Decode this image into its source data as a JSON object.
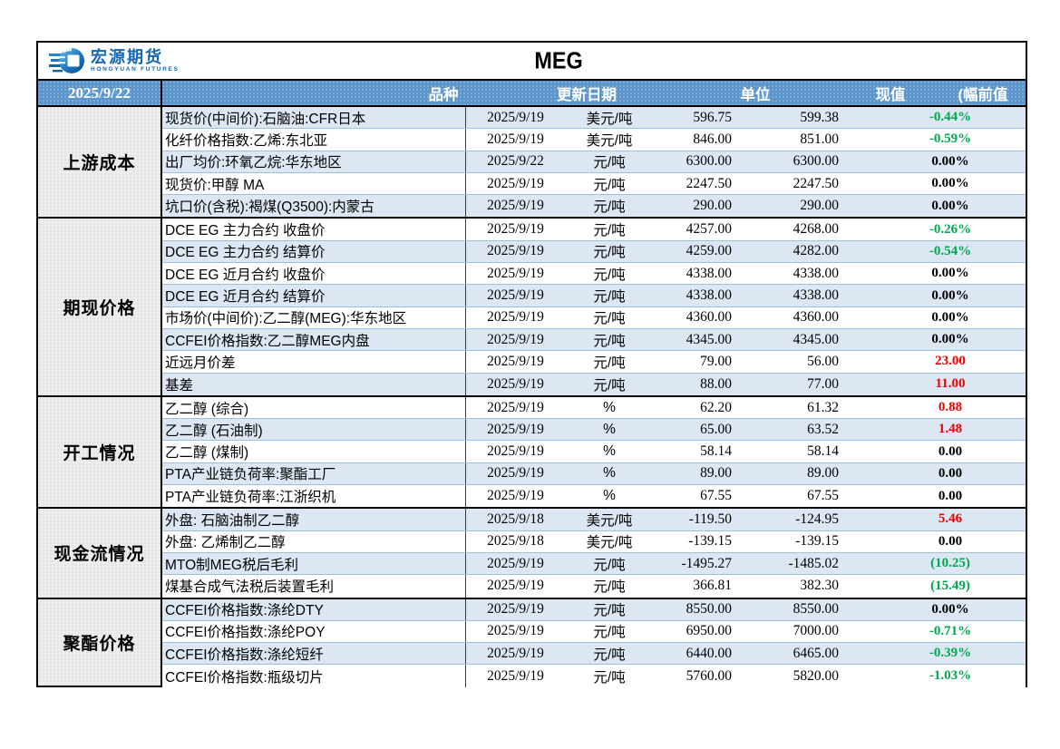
{
  "title": "MEG",
  "brand": {
    "name_cn": "宏源期货",
    "name_en": "HONGYUAN FUTURES"
  },
  "header": {
    "corner_date": "2025/9/22",
    "col_item": "品种",
    "col_date": "更新日期",
    "col_unit": "单位",
    "col_current": "现值",
    "col_change_prev": "(幅前值"
  },
  "colors": {
    "header_bg": "#5B95CB",
    "stripe": "#DCE7F3",
    "group_bg": "#EDEDED",
    "row_line": "#9DBFE0",
    "green": "#00A84F",
    "red": "#EE0000",
    "border": "#000000",
    "brand_blue": "#1767B3"
  },
  "sections": [
    {
      "label": "上游成本",
      "rows": [
        {
          "name": "现货价(中间价):石脑油:CFR日本",
          "date": "2025/9/19",
          "unit": "美元/吨",
          "current": "596.75",
          "previous": "599.38",
          "change": "-0.44%",
          "change_color": "green"
        },
        {
          "name": "化纤价格指数:乙烯:东北亚",
          "date": "2025/9/19",
          "unit": "美元/吨",
          "current": "846.00",
          "previous": "851.00",
          "change": "-0.59%",
          "change_color": "green"
        },
        {
          "name": "出厂均价:环氧乙烷:华东地区",
          "date": "2025/9/22",
          "unit": "元/吨",
          "current": "6300.00",
          "previous": "6300.00",
          "change": "0.00%",
          "change_color": "black"
        },
        {
          "name": "现货价:甲醇 MA",
          "date": "2025/9/19",
          "unit": "元/吨",
          "current": "2247.50",
          "previous": "2247.50",
          "change": "0.00%",
          "change_color": "black"
        },
        {
          "name": "坑口价(含税):褐煤(Q3500):内蒙古",
          "date": "2025/9/19",
          "unit": "元/吨",
          "current": "290.00",
          "previous": "290.00",
          "change": "0.00%",
          "change_color": "black"
        }
      ]
    },
    {
      "label": "期现价格",
      "rows": [
        {
          "name": "DCE EG 主力合约 收盘价",
          "date": "2025/9/19",
          "unit": "元/吨",
          "current": "4257.00",
          "previous": "4268.00",
          "change": "-0.26%",
          "change_color": "green"
        },
        {
          "name": "DCE EG 主力合约 结算价",
          "date": "2025/9/19",
          "unit": "元/吨",
          "current": "4259.00",
          "previous": "4282.00",
          "change": "-0.54%",
          "change_color": "green"
        },
        {
          "name": "DCE EG 近月合约 收盘价",
          "date": "2025/9/19",
          "unit": "元/吨",
          "current": "4338.00",
          "previous": "4338.00",
          "change": "0.00%",
          "change_color": "black"
        },
        {
          "name": "DCE EG 近月合约 结算价",
          "date": "2025/9/19",
          "unit": "元/吨",
          "current": "4338.00",
          "previous": "4338.00",
          "change": "0.00%",
          "change_color": "black"
        },
        {
          "name": "市场价(中间价):乙二醇(MEG):华东地区",
          "date": "2025/9/19",
          "unit": "元/吨",
          "current": "4360.00",
          "previous": "4360.00",
          "change": "0.00%",
          "change_color": "black"
        },
        {
          "name": "CCFEI价格指数:乙二醇MEG内盘",
          "date": "2025/9/19",
          "unit": "元/吨",
          "current": "4345.00",
          "previous": "4345.00",
          "change": "0.00%",
          "change_color": "black"
        },
        {
          "name": "近远月价差",
          "date": "2025/9/19",
          "unit": "元/吨",
          "current": "79.00",
          "previous": "56.00",
          "change": "23.00",
          "change_color": "red"
        },
        {
          "name": "基差",
          "date": "2025/9/19",
          "unit": "元/吨",
          "current": "88.00",
          "previous": "77.00",
          "change": "11.00",
          "change_color": "red"
        }
      ]
    },
    {
      "label": "开工情况",
      "rows": [
        {
          "name": "乙二醇 (综合)",
          "date": "2025/9/19",
          "unit": "%",
          "current": "62.20",
          "previous": "61.32",
          "change": "0.88",
          "change_color": "red"
        },
        {
          "name": "乙二醇 (石油制)",
          "date": "2025/9/19",
          "unit": "%",
          "current": "65.00",
          "previous": "63.52",
          "change": "1.48",
          "change_color": "red"
        },
        {
          "name": "乙二醇 (煤制)",
          "date": "2025/9/19",
          "unit": "%",
          "current": "58.14",
          "previous": "58.14",
          "change": "0.00",
          "change_color": "black"
        },
        {
          "name": "PTA产业链负荷率:聚酯工厂",
          "date": "2025/9/19",
          "unit": "%",
          "current": "89.00",
          "previous": "89.00",
          "change": "0.00",
          "change_color": "black"
        },
        {
          "name": "PTA产业链负荷率:江浙织机",
          "date": "2025/9/19",
          "unit": "%",
          "current": "67.55",
          "previous": "67.55",
          "change": "0.00",
          "change_color": "black"
        }
      ]
    },
    {
      "label": "现金流情况",
      "rows": [
        {
          "name": "外盘: 石脑油制乙二醇",
          "date": "2025/9/18",
          "unit": "美元/吨",
          "current": "-119.50",
          "previous": "-124.95",
          "change": "5.46",
          "change_color": "red"
        },
        {
          "name": "外盘: 乙烯制乙二醇",
          "date": "2025/9/18",
          "unit": "美元/吨",
          "current": "-139.15",
          "previous": "-139.15",
          "change": "0.00",
          "change_color": "black"
        },
        {
          "name": "MTO制MEG税后毛利",
          "date": "2025/9/19",
          "unit": "元/吨",
          "current": "-1495.27",
          "previous": "-1485.02",
          "change": "(10.25)",
          "change_color": "green"
        },
        {
          "name": "煤基合成气法税后装置毛利",
          "date": "2025/9/19",
          "unit": "元/吨",
          "current": "366.81",
          "previous": "382.30",
          "change": "(15.49)",
          "change_color": "green"
        }
      ]
    },
    {
      "label": "聚酯价格",
      "rows": [
        {
          "name": "CCFEI价格指数:涤纶DTY",
          "date": "2025/9/19",
          "unit": "元/吨",
          "current": "8550.00",
          "previous": "8550.00",
          "change": "0.00%",
          "change_color": "black"
        },
        {
          "name": "CCFEI价格指数:涤纶POY",
          "date": "2025/9/19",
          "unit": "元/吨",
          "current": "6950.00",
          "previous": "7000.00",
          "change": "-0.71%",
          "change_color": "green"
        },
        {
          "name": "CCFEI价格指数:涤纶短纤",
          "date": "2025/9/19",
          "unit": "元/吨",
          "current": "6440.00",
          "previous": "6465.00",
          "change": "-0.39%",
          "change_color": "green"
        },
        {
          "name": "CCFEI价格指数:瓶级切片",
          "date": "2025/9/19",
          "unit": "元/吨",
          "current": "5760.00",
          "previous": "5820.00",
          "change": "-1.03%",
          "change_color": "green"
        }
      ]
    }
  ]
}
